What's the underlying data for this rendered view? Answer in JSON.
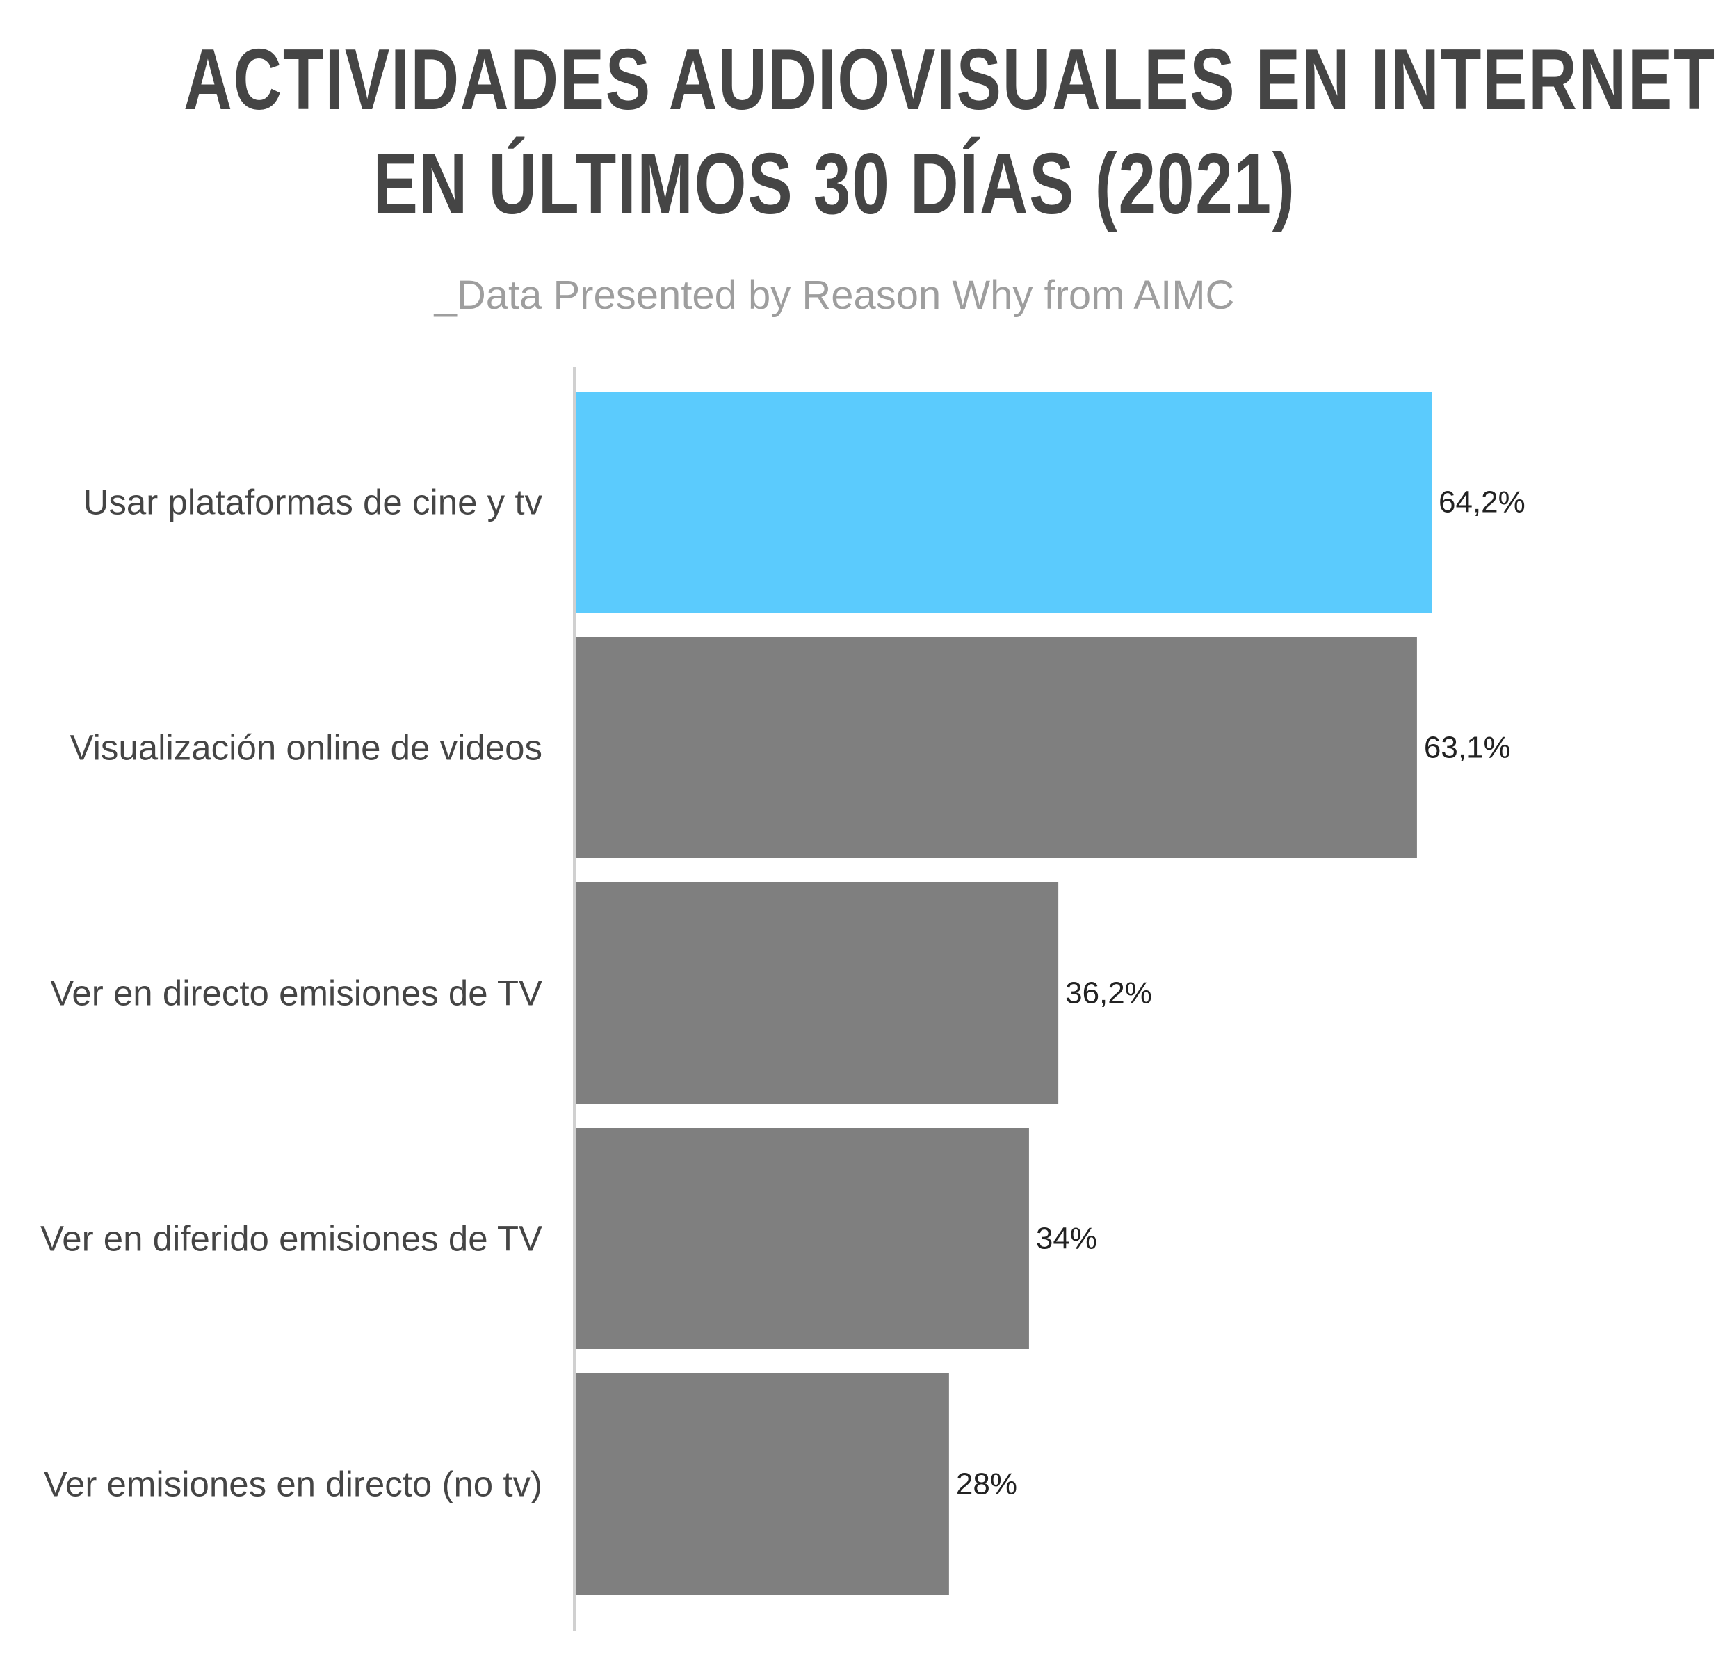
{
  "title_line1": "ACTIVIDADES AUDIOVISUALES EN INTERNET",
  "title_line2": "EN ÚLTIMOS 30 DÍAS (2021)",
  "subtitle": "_Data Presented by Reason Why from AIMC",
  "chart_data": {
    "type": "bar",
    "orientation": "horizontal",
    "title": "ACTIVIDADES AUDIOVISUALES EN INTERNET EN ÚLTIMOS 30 DÍAS (2021)",
    "subtitle": "_Data Presented by Reason Why from AIMC",
    "categories": [
      "Usar plataformas de cine y tv",
      "Visualización online de videos",
      "Ver en directo emisiones de TV",
      "Ver en diferido emisiones de TV",
      "Ver emisiones en directo (no tv)"
    ],
    "values": [
      64.2,
      63.1,
      36.2,
      34,
      28
    ],
    "value_labels": [
      "64,2%",
      "63,1%",
      "36,2%",
      "34%",
      "28%"
    ],
    "colors": [
      "#5bcbfd",
      "#7f7f7f",
      "#7f7f7f",
      "#7f7f7f",
      "#7f7f7f"
    ],
    "axis_color": "#d0d0d0",
    "xlim": [
      0,
      100
    ],
    "grid": false,
    "legend": "none"
  }
}
